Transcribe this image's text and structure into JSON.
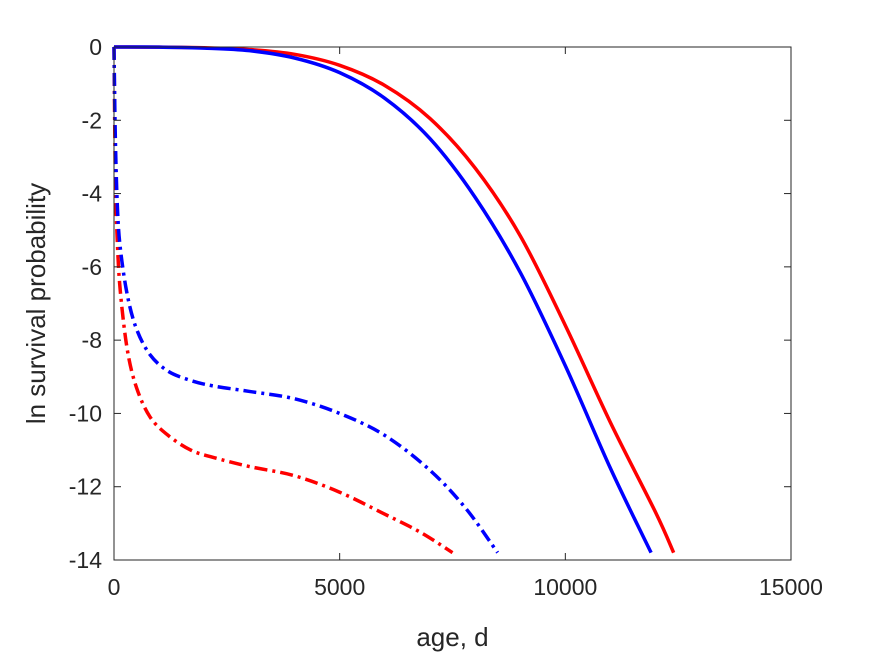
{
  "chart_data": {
    "type": "line",
    "title": "",
    "xlabel": "age, d",
    "ylabel": "ln survival probability",
    "xlim": [
      0,
      15000
    ],
    "ylim": [
      -14,
      0
    ],
    "xticks": [
      0,
      5000,
      10000,
      15000
    ],
    "xtick_labels": [
      "0",
      "5000",
      "10000",
      "15000"
    ],
    "yticks": [
      0,
      -2,
      -4,
      -6,
      -8,
      -10,
      -12,
      -14
    ],
    "ytick_labels": [
      "0",
      "-2",
      "-4",
      "-6",
      "-8",
      "-10",
      "-12",
      "-14"
    ],
    "grid": false,
    "legend": "none",
    "series": [
      {
        "color": "#ff0000",
        "dash": "solid",
        "x": [
          0,
          1000,
          2000,
          3000,
          4000,
          5000,
          6000,
          7000,
          8000,
          9000,
          10000,
          11000,
          12000,
          12400
        ],
        "y": [
          0,
          -0.005,
          -0.02,
          -0.07,
          -0.2,
          -0.5,
          -1.05,
          -1.95,
          -3.3,
          -5.15,
          -7.6,
          -10.25,
          -12.7,
          -13.8
        ]
      },
      {
        "color": "#0000ff",
        "dash": "solid",
        "x": [
          0,
          1000,
          2000,
          3000,
          4000,
          5000,
          6000,
          7000,
          8000,
          9000,
          10000,
          11000,
          11900
        ],
        "y": [
          0,
          -0.005,
          -0.03,
          -0.1,
          -0.3,
          -0.7,
          -1.4,
          -2.5,
          -4.1,
          -6.15,
          -8.7,
          -11.5,
          -13.8
        ]
      },
      {
        "color": "#ff0000",
        "dash": "dashdot",
        "x": [
          0,
          30,
          80,
          150,
          300,
          500,
          800,
          1200,
          1700,
          2200,
          3000,
          4000,
          5000,
          6000,
          6800,
          7500
        ],
        "y": [
          0,
          -3.5,
          -5.5,
          -6.8,
          -8.3,
          -9.3,
          -10.1,
          -10.6,
          -11.0,
          -11.2,
          -11.45,
          -11.7,
          -12.15,
          -12.75,
          -13.25,
          -13.8
        ]
      },
      {
        "color": "#0000ff",
        "dash": "dashdot",
        "x": [
          0,
          30,
          80,
          150,
          300,
          500,
          800,
          1200,
          1700,
          2200,
          3000,
          4000,
          5000,
          6000,
          7000,
          7800,
          8500
        ],
        "y": [
          0,
          -2.5,
          -4.5,
          -5.6,
          -6.8,
          -7.7,
          -8.4,
          -8.85,
          -9.1,
          -9.25,
          -9.4,
          -9.6,
          -10.0,
          -10.6,
          -11.55,
          -12.6,
          -13.8
        ]
      }
    ]
  }
}
